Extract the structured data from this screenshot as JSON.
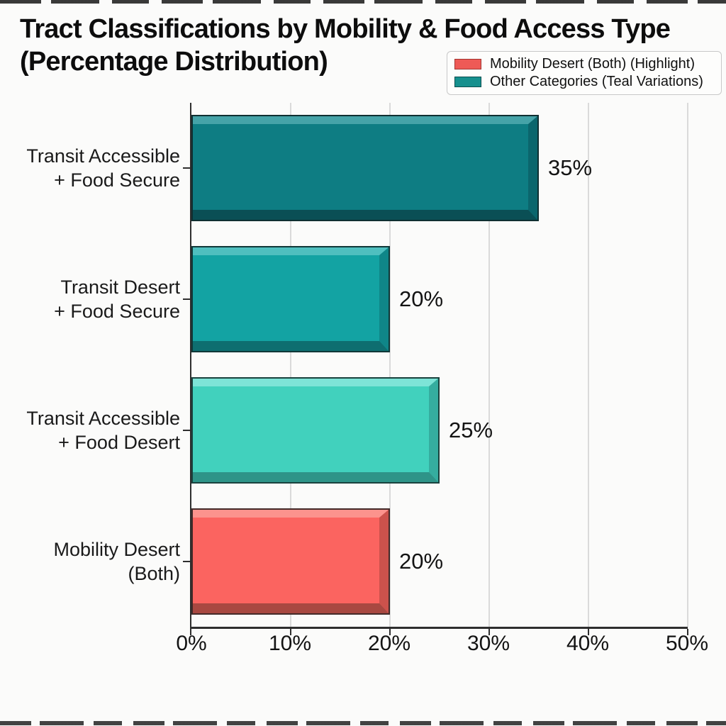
{
  "title_lines": [
    "Tract Classifications by Mobility & Food Access Type",
    "(Percentage Distribution)"
  ],
  "legend": {
    "items": [
      {
        "label": "Mobility Desert (Both) (Highlight)",
        "swatch_color": "#ee5a56",
        "swatch_border": "#a23632"
      },
      {
        "label": "Other Categories (Teal Variations)",
        "swatch_color": "#16908e",
        "swatch_border": "#0a4e4e"
      }
    ]
  },
  "chart_data": {
    "type": "bar",
    "orientation": "horizontal",
    "title": "Tract Classifications by Mobility & Food Access Type (Percentage Distribution)",
    "categories": [
      "Transit Accessible + Food Secure",
      "Transit Desert + Food Secure",
      "Transit Accessible + Food Desert",
      "Mobility Desert (Both)"
    ],
    "values": [
      35,
      20,
      25,
      20
    ],
    "xlim": [
      0,
      50
    ],
    "x_tick_labels": [
      "0%",
      "10%",
      "20%",
      "30%",
      "40%",
      "50%"
    ],
    "grid": "vertical gridlines at 10% intervals",
    "legend_position": "upper right",
    "bars": [
      {
        "label_line1": "Transit Accessible",
        "label_line2": "+ Food Secure",
        "value": 35,
        "value_label": "35%",
        "color_main": "#0e7d83",
        "color_light": "#45a3a8",
        "color_dark": "#0a4f55",
        "color_edge": "#0b666d"
      },
      {
        "label_line1": "Transit Desert",
        "label_line2": "+ Food Secure",
        "value": 20,
        "value_label": "20%",
        "color_main": "#13a3a3",
        "color_light": "#4fbfbf",
        "color_dark": "#0e6e70",
        "color_edge": "#0f8688"
      },
      {
        "label_line1": "Transit Accessible",
        "label_line2": "+ Food Desert",
        "value": 25,
        "value_label": "25%",
        "color_main": "#41d1bd",
        "color_light": "#7de4d7",
        "color_dark": "#2e9488",
        "color_edge": "#35ad9f"
      },
      {
        "label_line1": "Mobility Desert",
        "label_line2": "(Both)",
        "value": 20,
        "value_label": "20%",
        "color_main": "#fb6460",
        "color_light": "#fc938d",
        "color_dark": "#a84841",
        "color_edge": "#cc524c"
      }
    ]
  },
  "colors": {
    "background": "#fbfbfa",
    "axis": "#2e2e2e",
    "gridline": "#dadada",
    "text": "#131313"
  }
}
